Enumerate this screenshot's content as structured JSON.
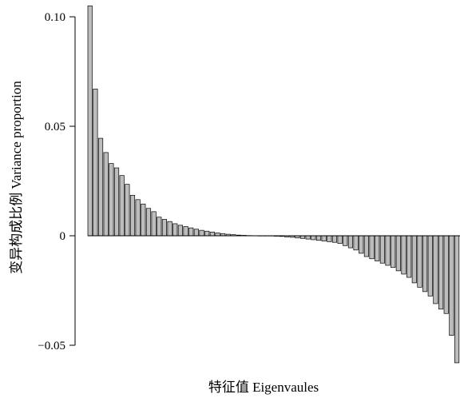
{
  "chart_data": {
    "type": "bar",
    "title": "",
    "xlabel": "特征值 Eigenvaules",
    "ylabel": "变异构成比例 Variance proportion",
    "ylim": [
      -0.058,
      0.105
    ],
    "yticks": [
      {
        "value": 0.1,
        "label": "0.10"
      },
      {
        "value": 0.05,
        "label": "0.05"
      },
      {
        "value": 0,
        "label": "0"
      },
      {
        "value": -0.05,
        "label": "−0.05"
      }
    ],
    "grid": false,
    "legend": "none",
    "bar_fill": "#bdbdbd",
    "bar_stroke": "#000000",
    "values": [
      0.105,
      0.067,
      0.0445,
      0.038,
      0.033,
      0.031,
      0.0275,
      0.0235,
      0.0185,
      0.0165,
      0.0145,
      0.0125,
      0.011,
      0.0085,
      0.0075,
      0.0065,
      0.0055,
      0.0048,
      0.0042,
      0.0036,
      0.003,
      0.0025,
      0.0021,
      0.0017,
      0.0013,
      0.001,
      0.0007,
      0.0005,
      0.0003,
      0.0002,
      0.0001,
      5e-05,
      0.0,
      -5e-05,
      -0.0001,
      -0.0002,
      -0.0003,
      -0.0005,
      -0.0007,
      -0.001,
      -0.0012,
      -0.0015,
      -0.0018,
      -0.0021,
      -0.0024,
      -0.0027,
      -0.003,
      -0.0035,
      -0.0045,
      -0.0055,
      -0.0065,
      -0.008,
      -0.0095,
      -0.0105,
      -0.0115,
      -0.0125,
      -0.0135,
      -0.0145,
      -0.016,
      -0.0175,
      -0.019,
      -0.0215,
      -0.0235,
      -0.0255,
      -0.0275,
      -0.031,
      -0.0335,
      -0.0355,
      -0.0455,
      -0.058
    ]
  }
}
